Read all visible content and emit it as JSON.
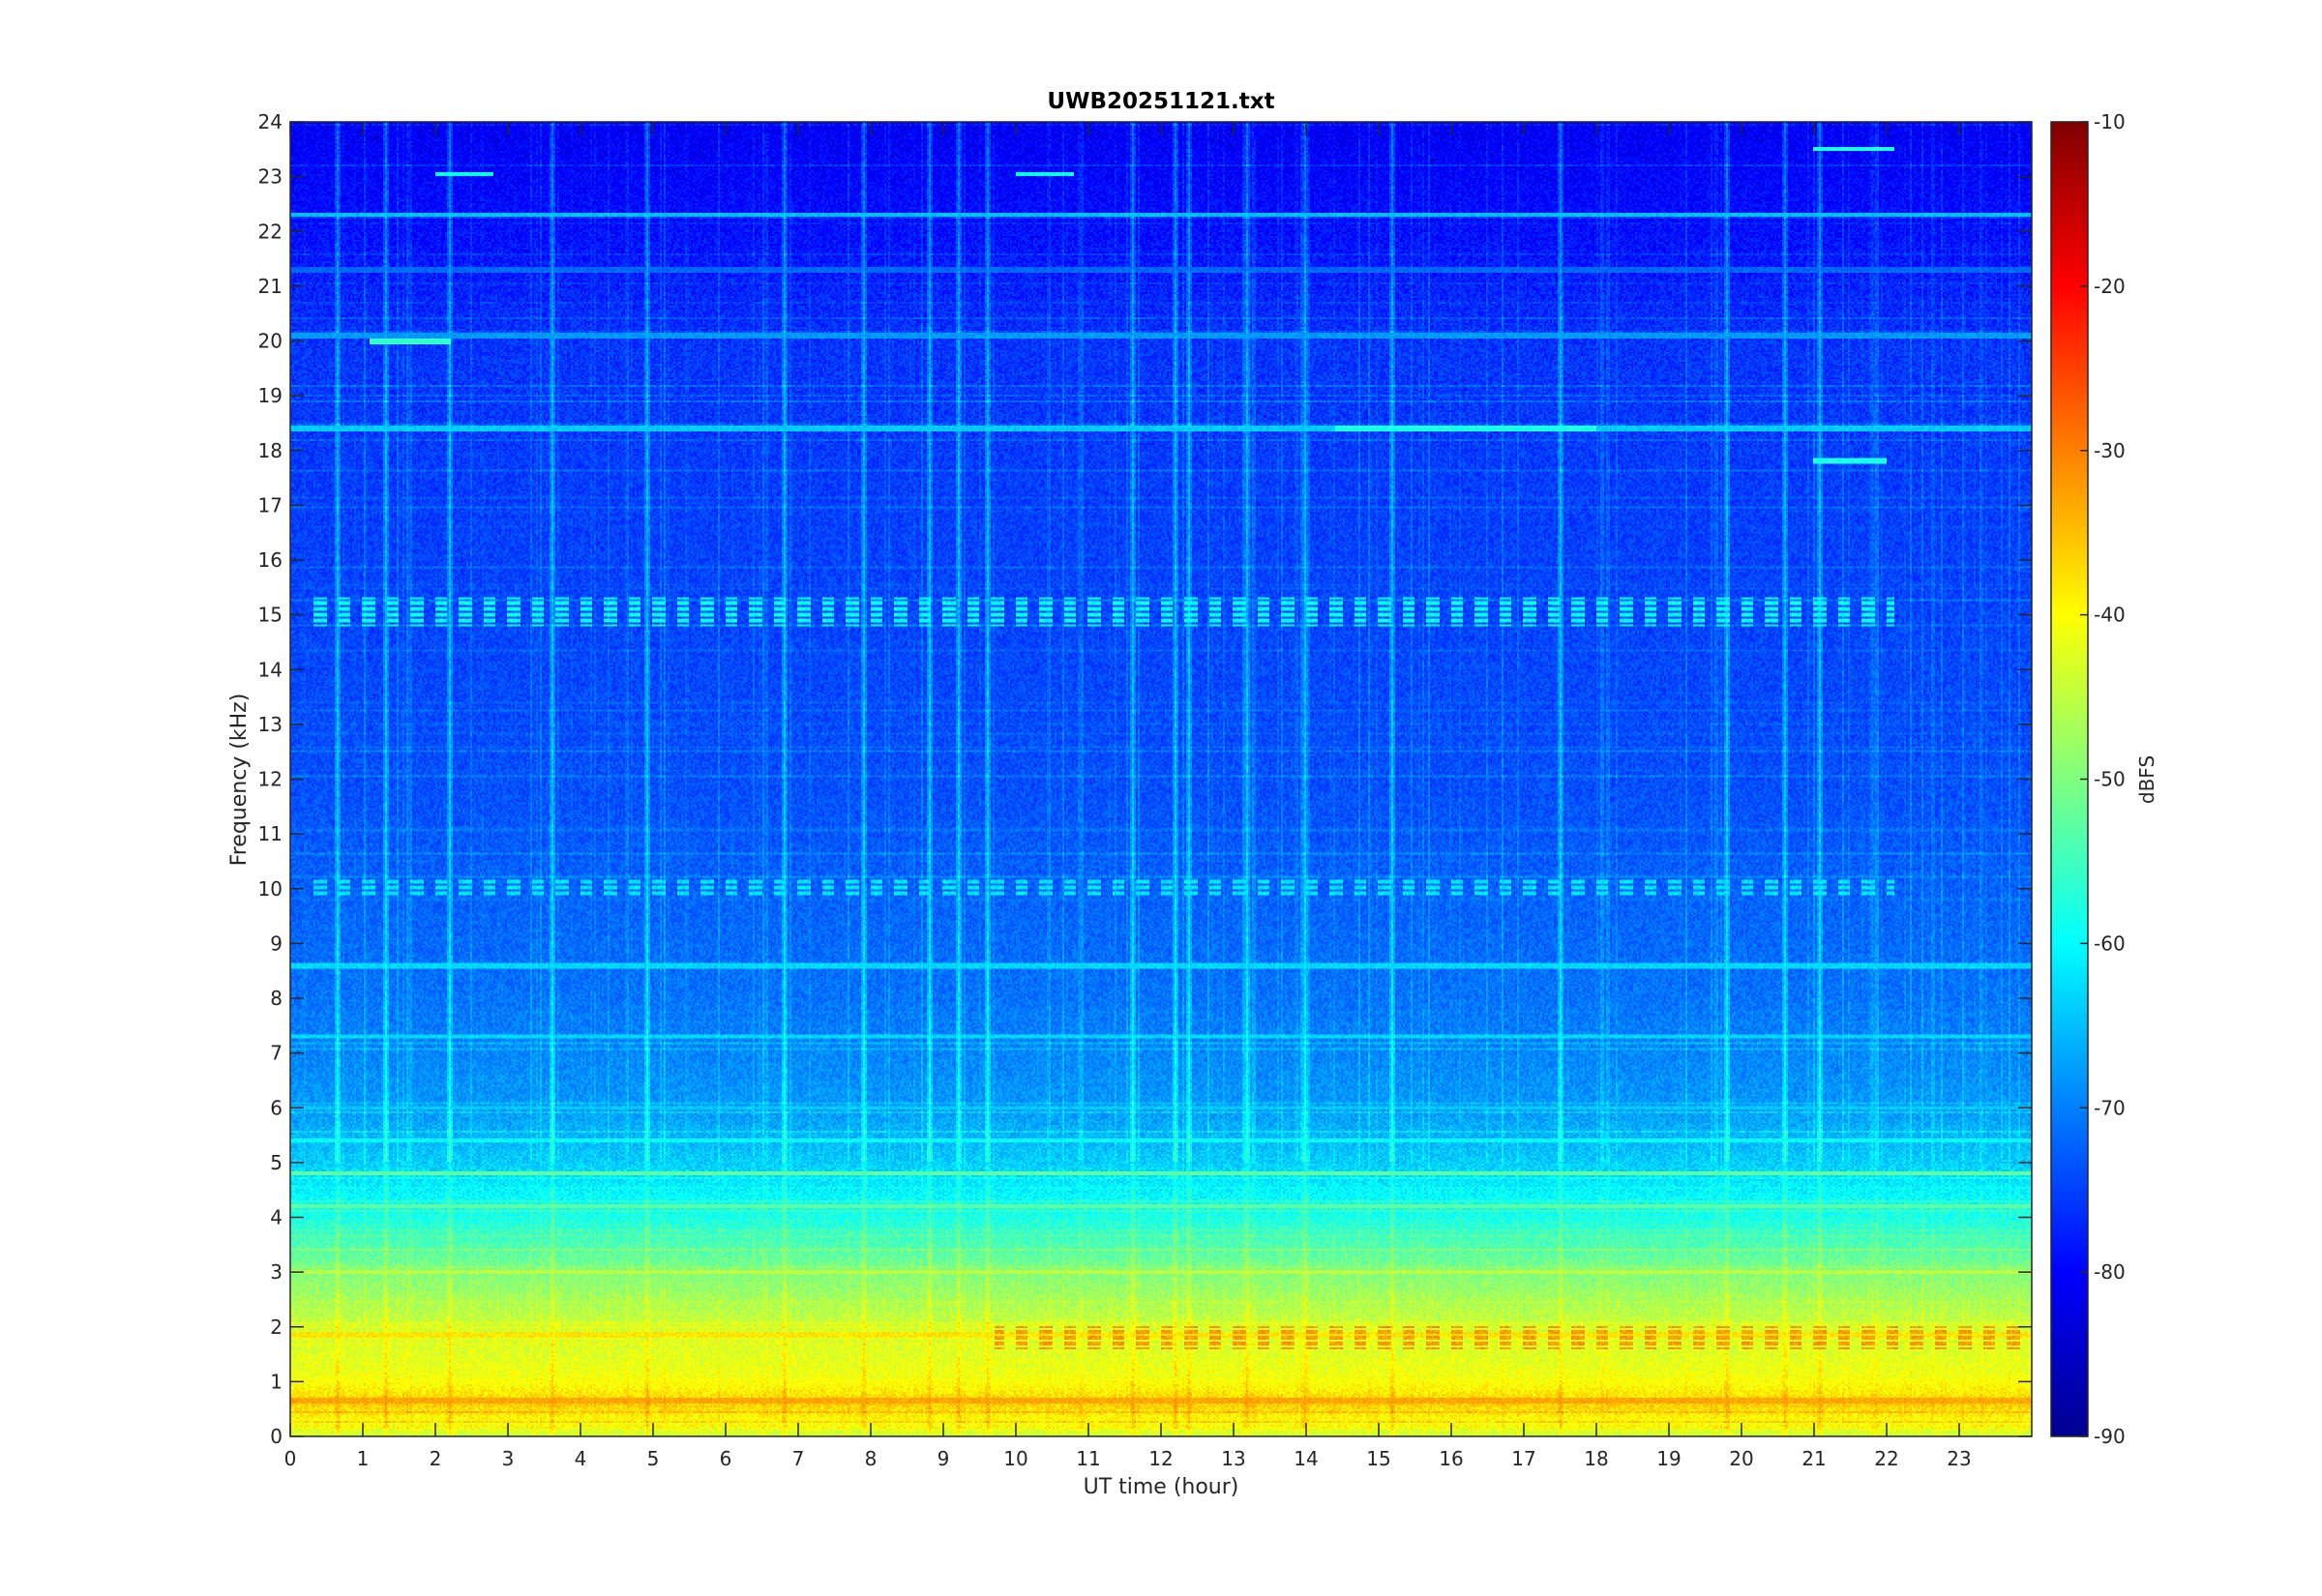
{
  "chart_data": {
    "type": "heatmap",
    "title": "UWB20251121.txt",
    "xlabel": "UT time (hour)",
    "ylabel": "Frequency (kHz)",
    "xlim": [
      0,
      24
    ],
    "ylim": [
      0,
      24
    ],
    "x_ticks": [
      0,
      1,
      2,
      3,
      4,
      5,
      6,
      7,
      8,
      9,
      10,
      11,
      12,
      13,
      14,
      15,
      16,
      17,
      18,
      19,
      20,
      21,
      22,
      23
    ],
    "y_ticks": [
      0,
      1,
      2,
      3,
      4,
      5,
      6,
      7,
      8,
      9,
      10,
      11,
      12,
      13,
      14,
      15,
      16,
      17,
      18,
      19,
      20,
      21,
      22,
      23,
      24
    ],
    "colorbar": {
      "label": "dBFS",
      "range": [
        -90,
        -10
      ],
      "ticks": [
        -90,
        -80,
        -70,
        -60,
        -50,
        -40,
        -30,
        -20,
        -10
      ],
      "colormap": "jet"
    },
    "background_level_profile": [
      {
        "freq_khz": 0.0,
        "level_dbfs": -44
      },
      {
        "freq_khz": 0.6,
        "level_dbfs": -36
      },
      {
        "freq_khz": 1.0,
        "level_dbfs": -41
      },
      {
        "freq_khz": 2.0,
        "level_dbfs": -44
      },
      {
        "freq_khz": 3.0,
        "level_dbfs": -50
      },
      {
        "freq_khz": 4.0,
        "level_dbfs": -58
      },
      {
        "freq_khz": 5.0,
        "level_dbfs": -64
      },
      {
        "freq_khz": 6.0,
        "level_dbfs": -68
      },
      {
        "freq_khz": 8.0,
        "level_dbfs": -71
      },
      {
        "freq_khz": 12.0,
        "level_dbfs": -74
      },
      {
        "freq_khz": 16.0,
        "level_dbfs": -75
      },
      {
        "freq_khz": 20.0,
        "level_dbfs": -76
      },
      {
        "freq_khz": 22.0,
        "level_dbfs": -79
      },
      {
        "freq_khz": 24.0,
        "level_dbfs": -81
      }
    ],
    "persistent_lines": [
      {
        "freq_khz": 0.65,
        "start_hour": 0,
        "end_hour": 24,
        "level_dbfs": -33
      },
      {
        "freq_khz": 1.0,
        "start_hour": 0,
        "end_hour": 24,
        "level_dbfs": -41
      },
      {
        "freq_khz": 1.85,
        "start_hour": 0,
        "end_hour": 24,
        "level_dbfs": -38
      },
      {
        "freq_khz": 3.0,
        "start_hour": 0,
        "end_hour": 24,
        "level_dbfs": -45
      },
      {
        "freq_khz": 4.2,
        "start_hour": 0,
        "end_hour": 24,
        "level_dbfs": -52
      },
      {
        "freq_khz": 4.8,
        "start_hour": 0,
        "end_hour": 24,
        "level_dbfs": -52
      },
      {
        "freq_khz": 8.6,
        "start_hour": 0,
        "end_hour": 24,
        "level_dbfs": -63
      },
      {
        "freq_khz": 18.4,
        "start_hour": 0,
        "end_hour": 24,
        "level_dbfs": -64
      },
      {
        "freq_khz": 18.4,
        "start_hour": 14.4,
        "end_hour": 18.0,
        "level_dbfs": -58
      },
      {
        "freq_khz": 20.1,
        "start_hour": 0,
        "end_hour": 24,
        "level_dbfs": -68
      },
      {
        "freq_khz": 20.0,
        "start_hour": 1.1,
        "end_hour": 2.2,
        "level_dbfs": -56
      },
      {
        "freq_khz": 21.3,
        "start_hour": 0,
        "end_hour": 24,
        "level_dbfs": -72
      },
      {
        "freq_khz": 22.3,
        "start_hour": 0,
        "end_hour": 24,
        "level_dbfs": -65
      },
      {
        "freq_khz": 23.05,
        "start_hour": 2.0,
        "end_hour": 2.8,
        "level_dbfs": -60
      },
      {
        "freq_khz": 23.05,
        "start_hour": 10.0,
        "end_hour": 10.8,
        "level_dbfs": -60
      },
      {
        "freq_khz": 23.5,
        "start_hour": 21.0,
        "end_hour": 22.1,
        "level_dbfs": -58
      },
      {
        "freq_khz": 17.8,
        "start_hour": 21.0,
        "end_hour": 22.0,
        "level_dbfs": -58
      },
      {
        "freq_khz": 7.3,
        "start_hour": 0,
        "end_hour": 24,
        "level_dbfs": -63
      },
      {
        "freq_khz": 6.0,
        "start_hour": 0,
        "end_hour": 24,
        "level_dbfs": -64
      },
      {
        "freq_khz": 5.4,
        "start_hour": 0,
        "end_hour": 24,
        "level_dbfs": -60
      }
    ],
    "intermittent_bands": [
      {
        "freq_khz": [
          14.8,
          15.3
        ],
        "start_hour": 0.2,
        "end_hour": 22.1,
        "level_dbfs": -60,
        "pattern": "dashed"
      },
      {
        "freq_khz": [
          9.9,
          10.2
        ],
        "start_hour": 0.2,
        "end_hour": 22.1,
        "level_dbfs": -62,
        "pattern": "dashed"
      },
      {
        "freq_khz": [
          1.6,
          2.0
        ],
        "start_hour": 9.7,
        "end_hour": 24,
        "level_dbfs": -32,
        "pattern": "dashed"
      }
    ],
    "vertical_streaks_hours": [
      0.65,
      1.3,
      2.2,
      3.6,
      4.9,
      6.8,
      7.9,
      8.8,
      9.2,
      9.6,
      11.6,
      12.2,
      12.4,
      13.2,
      14.0,
      15.2,
      17.5,
      19.8,
      20.6,
      21.1
    ]
  }
}
